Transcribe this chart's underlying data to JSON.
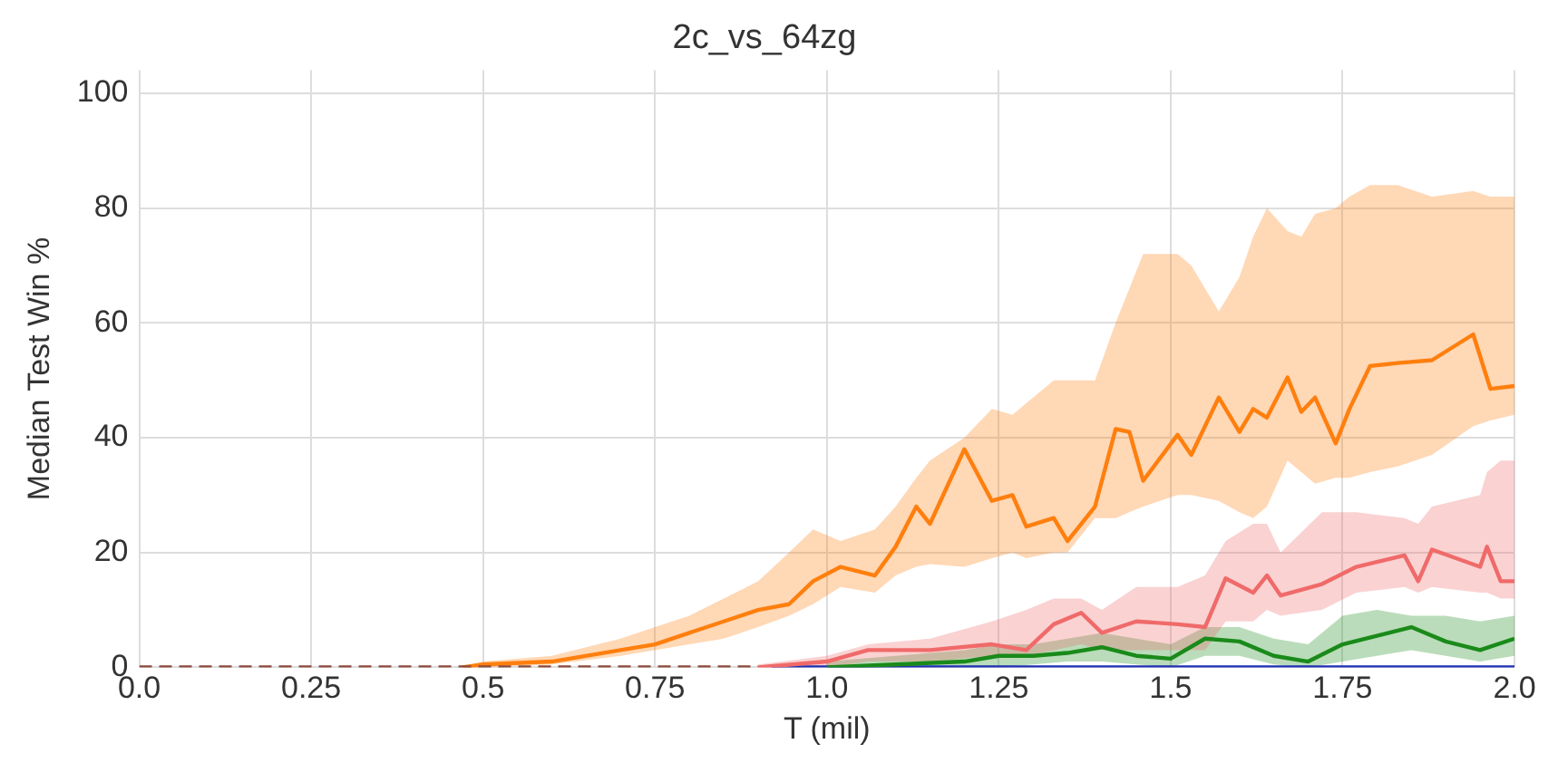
{
  "chart_data": {
    "type": "line",
    "title": "2c_vs_64zg",
    "xlabel": "T (mil)",
    "ylabel": "Median Test Win %",
    "xlim": [
      0,
      2.0
    ],
    "xticks": [
      {
        "value": 0,
        "label": "0.0"
      },
      0.25,
      0.5,
      0.75,
      {
        "value": 1,
        "label": "1.0"
      },
      1.25,
      1.5,
      1.75,
      {
        "value": 2,
        "label": "2.0"
      }
    ],
    "ylim": [
      0,
      104
    ],
    "yticks": [
      0,
      20,
      40,
      60,
      80,
      100
    ],
    "grid": true,
    "legend": false,
    "marker": "none",
    "series": [
      {
        "color": "#1f2fb4",
        "x": [
          0.92,
          2.0
        ],
        "values": [
          0,
          0
        ]
      },
      {
        "color": "#ff7f0e",
        "x": [
          0.47,
          0.5,
          0.6,
          0.7,
          0.75,
          0.8,
          0.85,
          0.9,
          0.945,
          0.98,
          1.02,
          1.07,
          1.1,
          1.13,
          1.15,
          1.2,
          1.24,
          1.27,
          1.29,
          1.33,
          1.35,
          1.39,
          1.42,
          1.44,
          1.46,
          1.51,
          1.53,
          1.57,
          1.6,
          1.62,
          1.64,
          1.67,
          1.69,
          1.71,
          1.74,
          1.76,
          1.79,
          1.83,
          1.88,
          1.94,
          1.965,
          2.0
        ],
        "values": [
          0,
          0.5,
          1,
          3,
          4,
          6,
          8,
          10,
          11,
          15,
          17.5,
          16,
          21,
          28,
          25,
          38,
          29,
          30,
          24.5,
          26,
          22,
          28,
          41.5,
          41,
          32.5,
          40.5,
          37,
          47,
          41,
          45,
          43.5,
          50.5,
          44.5,
          47,
          39,
          45,
          52.5,
          53,
          53.5,
          58,
          48.5,
          49
        ],
        "upper": [
          0,
          1,
          2,
          5,
          7,
          9,
          12,
          15,
          20,
          24,
          22,
          24,
          28,
          33,
          36,
          40,
          45,
          44,
          46,
          50,
          50,
          50,
          60,
          66,
          72,
          72,
          70,
          62,
          68,
          75,
          80,
          76,
          75,
          79,
          80,
          82,
          84,
          84,
          82,
          83,
          82,
          82
        ],
        "lower": [
          0,
          0,
          0.5,
          2,
          3,
          4,
          5,
          7,
          9,
          11,
          14,
          13,
          16,
          17.5,
          18,
          17.5,
          19,
          20,
          19,
          20,
          20,
          26,
          26,
          27,
          28,
          30,
          30,
          29,
          27,
          26,
          28,
          36,
          34,
          32,
          33,
          33,
          34,
          35,
          37,
          42,
          43,
          44
        ]
      },
      {
        "color": "#f06a6a",
        "x": [
          0.9,
          1.0,
          1.06,
          1.15,
          1.24,
          1.29,
          1.33,
          1.37,
          1.4,
          1.45,
          1.51,
          1.55,
          1.58,
          1.62,
          1.64,
          1.66,
          1.72,
          1.77,
          1.84,
          1.86,
          1.88,
          1.95,
          1.96,
          1.98,
          2.0
        ],
        "values": [
          0,
          1,
          3,
          3,
          4,
          3,
          7.5,
          9.5,
          6,
          8,
          7.5,
          7,
          15.5,
          13,
          16,
          12.5,
          14.5,
          17.5,
          19.5,
          15,
          20.5,
          17.5,
          21,
          15,
          15
        ],
        "upper": [
          0.5,
          2,
          4,
          5,
          8,
          10,
          12,
          12,
          10,
          14,
          14,
          16,
          22,
          25,
          25,
          20,
          27,
          27,
          26,
          25,
          28,
          30,
          34,
          36,
          36
        ],
        "lower": [
          0,
          0,
          1,
          1,
          2,
          2,
          3,
          4,
          3,
          3,
          3,
          3,
          8,
          8,
          10,
          9,
          10,
          13,
          14,
          13,
          14,
          13,
          13,
          12,
          12
        ]
      },
      {
        "color": "#1a8a1a",
        "x": [
          1.0,
          1.1,
          1.2,
          1.25,
          1.3,
          1.35,
          1.4,
          1.45,
          1.5,
          1.55,
          1.6,
          1.65,
          1.7,
          1.75,
          1.8,
          1.85,
          1.9,
          1.95,
          2.0
        ],
        "values": [
          0,
          0.5,
          1,
          2,
          2,
          2.5,
          3.5,
          2,
          1.5,
          5,
          4.5,
          2,
          1,
          4,
          5.5,
          7,
          4.5,
          3,
          5
        ],
        "upper": [
          1,
          2,
          3,
          4,
          4,
          5,
          6,
          5,
          4,
          7,
          7,
          5,
          4,
          9,
          10,
          9,
          9,
          8,
          9
        ],
        "lower": [
          0,
          0,
          0,
          0,
          0.5,
          1,
          1,
          0.5,
          0,
          2,
          2,
          0.5,
          0,
          1,
          2,
          3,
          2,
          1,
          2
        ]
      },
      {
        "color": "#8c4a3a",
        "x": [
          0,
          0.9
        ],
        "values": [
          0,
          0
        ],
        "line_style": "dashed"
      }
    ]
  }
}
